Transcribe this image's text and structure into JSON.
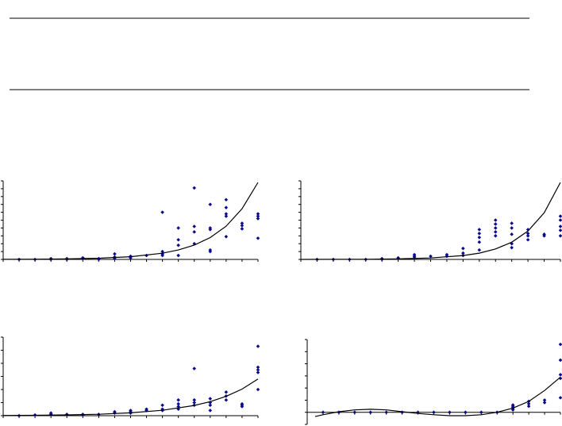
{
  "chart_data": [
    {
      "type": "scatter",
      "xlim": [
        0,
        16
      ],
      "ylim": [
        0,
        10
      ],
      "xticks": [
        0,
        1,
        2,
        3,
        4,
        5,
        6,
        7,
        8,
        9,
        10,
        11,
        12,
        13,
        14,
        15,
        16
      ],
      "yticks": [
        0,
        1,
        2,
        3,
        4,
        5,
        6,
        7,
        8,
        9,
        10
      ],
      "series": [
        {
          "type": "scatter",
          "color": "#0a0a8c",
          "x": [
            1,
            2,
            3,
            3,
            4,
            4,
            5,
            5,
            6,
            6,
            7,
            7,
            7,
            8,
            8,
            9,
            10,
            10,
            10,
            10,
            11,
            11,
            11,
            11,
            12,
            12,
            12,
            12,
            13,
            13,
            13,
            13,
            13,
            14,
            14,
            14,
            14,
            14,
            15,
            15,
            15,
            16,
            16,
            16,
            16
          ],
          "values": [
            0,
            0,
            0.1,
            0,
            0.1,
            0,
            0.1,
            0.2,
            0.1,
            0,
            0.7,
            0.3,
            0.1,
            0.4,
            0.2,
            0.5,
            6,
            1,
            0.7,
            0.5,
            4,
            2.5,
            1.8,
            0.5,
            9.1,
            4.2,
            3.5,
            2,
            7,
            4,
            3.8,
            1.2,
            1,
            7.6,
            6.6,
            5.8,
            5.5,
            2.9,
            4.6,
            4.3,
            3.9,
            5.8,
            5.5,
            5.2,
            2.7
          ]
        },
        {
          "type": "line",
          "color": "#000000",
          "x": [
            0,
            2,
            4,
            6,
            8,
            10,
            11,
            12,
            13,
            14,
            15,
            16
          ],
          "values": [
            0.01,
            0.03,
            0.06,
            0.15,
            0.34,
            0.79,
            1.2,
            1.83,
            2.78,
            4.23,
            6.44,
            9.8
          ]
        }
      ]
    },
    {
      "type": "scatter",
      "xlim": [
        0,
        16
      ],
      "ylim": [
        0,
        10
      ],
      "xticks": [
        0,
        1,
        2,
        3,
        4,
        5,
        6,
        7,
        8,
        9,
        10,
        11,
        12,
        13,
        14,
        15,
        16
      ],
      "yticks": [
        0,
        1,
        2,
        3,
        4,
        5,
        6,
        7,
        8,
        9,
        10
      ],
      "series": [
        {
          "type": "scatter",
          "color": "#0a0a8c",
          "x": [
            1,
            2,
            3,
            4,
            5,
            5,
            6,
            6,
            7,
            7,
            7,
            8,
            9,
            9,
            10,
            10,
            10,
            11,
            11,
            11,
            11,
            11,
            12,
            12,
            12,
            12,
            12,
            13,
            13,
            13,
            13,
            13,
            14,
            14,
            14,
            14,
            15,
            15,
            16,
            16,
            16,
            16,
            16
          ],
          "values": [
            0,
            0,
            0,
            0,
            0.1,
            0,
            0.1,
            0.2,
            0.6,
            0.4,
            0.3,
            0.4,
            0.6,
            0.4,
            1.4,
            0.8,
            0.5,
            3.8,
            3.3,
            2.8,
            2.2,
            1.2,
            5,
            4.5,
            4,
            3.5,
            3,
            4.6,
            4,
            3.2,
            2,
            1.5,
            3.8,
            3.3,
            3,
            2.5,
            3.2,
            3,
            5.5,
            5,
            4.2,
            3.7,
            3
          ]
        },
        {
          "type": "line",
          "color": "#000000",
          "x": [
            0,
            2,
            4,
            6,
            8,
            10,
            11,
            12,
            13,
            14,
            15,
            16
          ],
          "values": [
            0.003,
            0.009,
            0.02,
            0.07,
            0.18,
            0.49,
            0.8,
            1.33,
            2.19,
            3.61,
            5.95,
            9.8
          ]
        }
      ]
    },
    {
      "type": "scatter",
      "xlim": [
        0,
        16
      ],
      "ylim": [
        0,
        6
      ],
      "xticks": [
        0,
        1,
        2,
        3,
        4,
        5,
        6,
        7,
        8,
        9,
        10,
        11,
        12,
        13,
        14,
        15,
        16
      ],
      "yticks": [
        0,
        1,
        2,
        3,
        4,
        5,
        6
      ],
      "series": [
        {
          "type": "scatter",
          "color": "#0a0a8c",
          "x": [
            1,
            2,
            3,
            3,
            4,
            5,
            5,
            6,
            7,
            7,
            8,
            8,
            8,
            9,
            9,
            10,
            10,
            10,
            11,
            11,
            11,
            11,
            12,
            12,
            12,
            12,
            13,
            13,
            13,
            13,
            14,
            14,
            14,
            15,
            15,
            15,
            16,
            16,
            16,
            16,
            16
          ],
          "values": [
            0,
            0.05,
            0.2,
            0.1,
            0.1,
            0.1,
            0.05,
            0.1,
            0.3,
            0.2,
            0.4,
            0.3,
            0.2,
            0.5,
            0.4,
            0.8,
            0.5,
            0.4,
            1.2,
            0.9,
            0.7,
            0.5,
            3.6,
            1.2,
            1,
            0.8,
            1.3,
            1,
            0.8,
            0.4,
            1.8,
            1.5,
            1.2,
            0.9,
            0.8,
            0.7,
            5.3,
            3.7,
            3.5,
            3.3,
            2
          ]
        },
        {
          "type": "line",
          "color": "#000000",
          "x": [
            0,
            2,
            4,
            6,
            8,
            10,
            12,
            13,
            14,
            15,
            16
          ],
          "values": [
            0.02,
            0.03,
            0.06,
            0.11,
            0.22,
            0.41,
            0.78,
            1.07,
            1.48,
            2.03,
            2.8
          ]
        }
      ]
    },
    {
      "type": "scatter",
      "xlim": [
        0,
        16
      ],
      "ylim": [
        -1,
        6
      ],
      "xticks": [
        0,
        1,
        2,
        3,
        4,
        5,
        6,
        7,
        8,
        9,
        10,
        11,
        12,
        13,
        14,
        15,
        16
      ],
      "yticks": [
        -1,
        0,
        1,
        2,
        3,
        4,
        5,
        6
      ],
      "series": [
        {
          "type": "scatter",
          "color": "#0a0a8c",
          "x": [
            1,
            2,
            3,
            4,
            5,
            6,
            7,
            8,
            9,
            10,
            11,
            12,
            13,
            13,
            13,
            13,
            13,
            14,
            14,
            14,
            15,
            15,
            16,
            16,
            16,
            16,
            16
          ],
          "values": [
            0,
            0,
            0,
            0,
            0,
            0,
            0,
            0,
            0,
            0,
            0,
            0,
            0.6,
            0.5,
            0.4,
            0.3,
            0.2,
            0.9,
            0.7,
            0.5,
            1,
            0.8,
            5.6,
            4.3,
            3.1,
            2.8,
            1.2
          ]
        },
        {
          "type": "line",
          "color": "#000000",
          "x": [
            0.5,
            1,
            2,
            3,
            4,
            5,
            6,
            7,
            8,
            9,
            10,
            11,
            12,
            13,
            14,
            15,
            16
          ],
          "values": [
            -0.35,
            -0.2,
            0.05,
            0.2,
            0.25,
            0.2,
            0.05,
            -0.1,
            -0.2,
            -0.28,
            -0.28,
            -0.2,
            0,
            0.35,
            0.9,
            1.8,
            2.9
          ]
        }
      ]
    }
  ]
}
